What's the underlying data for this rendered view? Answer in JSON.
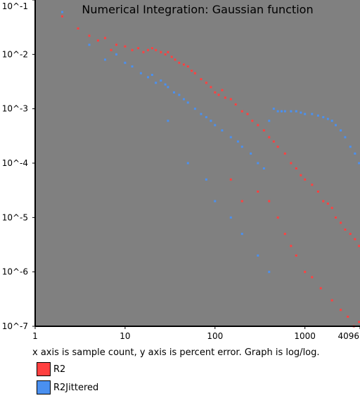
{
  "chart_data": {
    "type": "scatter",
    "title": "Numerical Integration: Gaussian function",
    "caption": "x axis is sample count, y axis is percent error. Graph is log/log.",
    "x_scale": "log",
    "y_scale": "log",
    "xlim": [
      1,
      4096
    ],
    "ylim": [
      1e-07,
      0.1
    ],
    "grid": false,
    "legend_placement": "bottom-left",
    "background_color": "#808080",
    "x_tick_labels": [
      {
        "value": 1,
        "label": "1"
      },
      {
        "value": 10,
        "label": "10"
      },
      {
        "value": 100,
        "label": "100"
      },
      {
        "value": 1000,
        "label": "1000"
      },
      {
        "value": 4096,
        "label": "4096"
      }
    ],
    "y_tick_labels": [
      {
        "value": 0.1,
        "label": "10^-1"
      },
      {
        "value": 0.01,
        "label": "10^-2"
      },
      {
        "value": 0.001,
        "label": "10^-3"
      },
      {
        "value": 0.0001,
        "label": "10^-4"
      },
      {
        "value": 1e-05,
        "label": "10^-5"
      },
      {
        "value": 1e-06,
        "label": "10^-6"
      },
      {
        "value": 1e-07,
        "label": "10^-7"
      }
    ],
    "series": [
      {
        "name": "R2",
        "color": "#ff4040",
        "points": [
          [
            2,
            0.05
          ],
          [
            3,
            0.03
          ],
          [
            4,
            0.022
          ],
          [
            5,
            0.018
          ],
          [
            6,
            0.02
          ],
          [
            7,
            0.012
          ],
          [
            8,
            0.015
          ],
          [
            10,
            0.014
          ],
          [
            12,
            0.012
          ],
          [
            14,
            0.013
          ],
          [
            16,
            0.011
          ],
          [
            18,
            0.012
          ],
          [
            20,
            0.013
          ],
          [
            22,
            0.012
          ],
          [
            25,
            0.011
          ],
          [
            28,
            0.01
          ],
          [
            30,
            0.011
          ],
          [
            33,
            0.009
          ],
          [
            36,
            0.008
          ],
          [
            40,
            0.007
          ],
          [
            45,
            0.0065
          ],
          [
            50,
            0.006
          ],
          [
            55,
            0.005
          ],
          [
            60,
            0.0045
          ],
          [
            70,
            0.0035
          ],
          [
            80,
            0.003
          ],
          [
            90,
            0.0025
          ],
          [
            100,
            0.002
          ],
          [
            110,
            0.0018
          ],
          [
            120,
            0.0022
          ],
          [
            130,
            0.0016
          ],
          [
            150,
            0.0015
          ],
          [
            170,
            0.0012
          ],
          [
            200,
            0.0009
          ],
          [
            230,
            0.0008
          ],
          [
            260,
            0.0006
          ],
          [
            300,
            0.0005
          ],
          [
            350,
            0.0004
          ],
          [
            400,
            0.0003
          ],
          [
            450,
            0.00025
          ],
          [
            500,
            0.0002
          ],
          [
            600,
            0.00015
          ],
          [
            700,
            0.0001
          ],
          [
            800,
            8e-05
          ],
          [
            900,
            6e-05
          ],
          [
            1000,
            5e-05
          ],
          [
            1200,
            4e-05
          ],
          [
            1400,
            3e-05
          ],
          [
            1600,
            2e-05
          ],
          [
            1800,
            1.8e-05
          ],
          [
            2000,
            1.5e-05
          ],
          [
            2200,
            1e-05
          ],
          [
            2500,
            8e-06
          ],
          [
            2800,
            6e-06
          ],
          [
            3200,
            5e-06
          ],
          [
            3600,
            4e-06
          ],
          [
            4000,
            3e-06
          ],
          [
            150,
            5e-05
          ],
          [
            200,
            2e-05
          ],
          [
            300,
            3e-05
          ],
          [
            400,
            2e-05
          ],
          [
            500,
            1e-05
          ],
          [
            600,
            5e-06
          ],
          [
            700,
            3e-06
          ],
          [
            800,
            2e-06
          ],
          [
            1000,
            1e-06
          ],
          [
            1200,
            8e-07
          ],
          [
            1500,
            5e-07
          ],
          [
            2000,
            3e-07
          ],
          [
            2500,
            2e-07
          ],
          [
            3000,
            1.5e-07
          ],
          [
            3500,
            1e-07
          ],
          [
            4000,
            1.2e-07
          ]
        ]
      },
      {
        "name": "R2Jittered",
        "color": "#4a90f0",
        "points": [
          [
            2,
            0.06
          ],
          [
            4,
            0.015
          ],
          [
            6,
            0.008
          ],
          [
            8,
            0.01
          ],
          [
            10,
            0.007
          ],
          [
            12,
            0.006
          ],
          [
            15,
            0.0045
          ],
          [
            18,
            0.0038
          ],
          [
            20,
            0.0042
          ],
          [
            22,
            0.003
          ],
          [
            25,
            0.0033
          ],
          [
            28,
            0.0028
          ],
          [
            30,
            0.0025
          ],
          [
            35,
            0.002
          ],
          [
            40,
            0.0018
          ],
          [
            45,
            0.0015
          ],
          [
            50,
            0.0013
          ],
          [
            60,
            0.001
          ],
          [
            70,
            0.0008
          ],
          [
            80,
            0.0007
          ],
          [
            90,
            0.0006
          ],
          [
            100,
            0.0005
          ],
          [
            120,
            0.0004
          ],
          [
            150,
            0.0003
          ],
          [
            180,
            0.00025
          ],
          [
            200,
            0.0002
          ],
          [
            250,
            0.00015
          ],
          [
            300,
            0.0001
          ],
          [
            350,
            8e-05
          ],
          [
            400,
            0.0006
          ],
          [
            450,
            0.001
          ],
          [
            500,
            0.0009
          ],
          [
            550,
            0.0009
          ],
          [
            600,
            0.0009
          ],
          [
            700,
            0.0009
          ],
          [
            800,
            0.0009
          ],
          [
            900,
            0.00085
          ],
          [
            1000,
            0.0008
          ],
          [
            1200,
            0.0008
          ],
          [
            1400,
            0.00075
          ],
          [
            1600,
            0.0007
          ],
          [
            1800,
            0.00065
          ],
          [
            2000,
            0.0006
          ],
          [
            2200,
            0.0005
          ],
          [
            2500,
            0.0004
          ],
          [
            2800,
            0.0003
          ],
          [
            3200,
            0.0002
          ],
          [
            3600,
            0.00015
          ],
          [
            4000,
            0.0001
          ],
          [
            30,
            0.0006
          ],
          [
            50,
            0.0001
          ],
          [
            80,
            5e-05
          ],
          [
            100,
            2e-05
          ],
          [
            150,
            1e-05
          ],
          [
            200,
            5e-06
          ],
          [
            300,
            2e-06
          ],
          [
            400,
            1e-06
          ]
        ]
      }
    ]
  }
}
